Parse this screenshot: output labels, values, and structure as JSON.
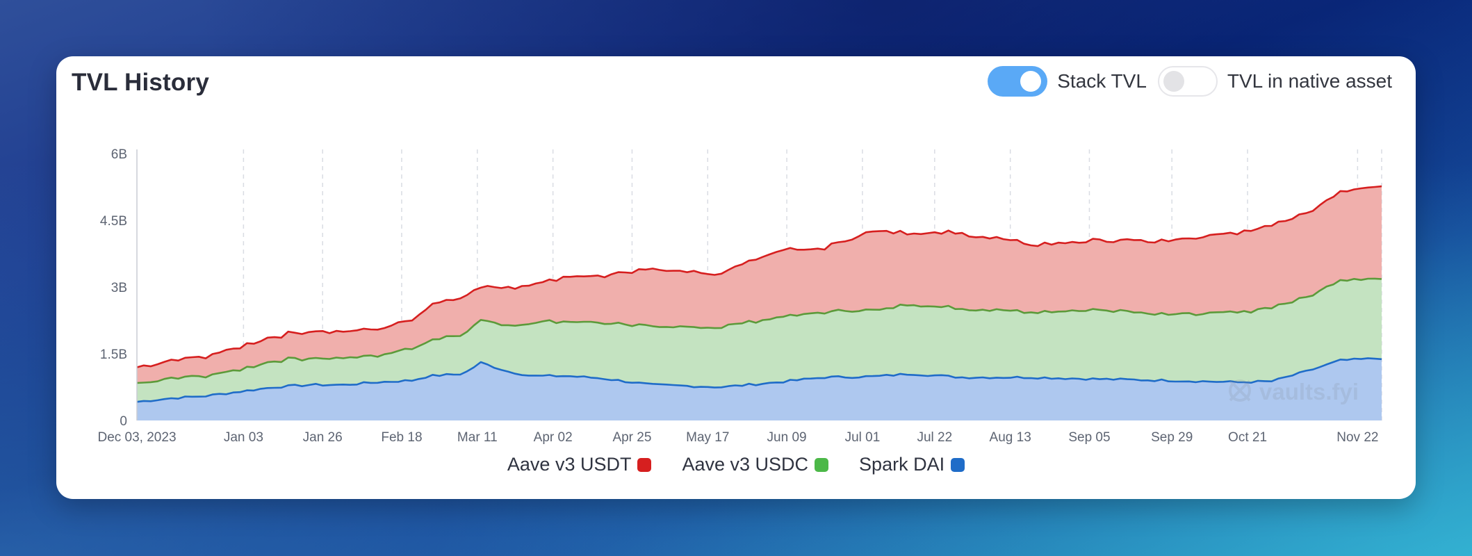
{
  "header": {
    "title": "TVL History",
    "toggles": [
      {
        "label": "Stack TVL",
        "on": true
      },
      {
        "label": "TVL in native asset",
        "on": false
      }
    ]
  },
  "watermark": "vaults.fyi",
  "colors": {
    "usdt_line": "#d61f1f",
    "usdt_fill": "#f0afac",
    "usdc_line": "#5c9a3a",
    "usdc_fill": "#c4e3c1",
    "dai_line": "#1f6cc8",
    "dai_fill": "#aec8ef",
    "toggle_on": "#5aa9f6"
  },
  "chart_data": {
    "type": "area",
    "stacked": true,
    "title": "TVL History",
    "ylim": [
      0,
      6000000000
    ],
    "yticks": [
      {
        "value": 0,
        "label": "0"
      },
      {
        "value": 1500000000,
        "label": "1.5B"
      },
      {
        "value": 3000000000,
        "label": "3B"
      },
      {
        "value": 4500000000,
        "label": "4.5B"
      },
      {
        "value": 6000000000,
        "label": "6B"
      }
    ],
    "xlim": [
      0,
      362
    ],
    "xticks": [
      {
        "day": 0,
        "label": "Dec 03, 2023"
      },
      {
        "day": 31,
        "label": "Jan 03"
      },
      {
        "day": 54,
        "label": "Jan 26"
      },
      {
        "day": 77,
        "label": "Feb 18"
      },
      {
        "day": 99,
        "label": "Mar 11"
      },
      {
        "day": 121,
        "label": "Apr 02"
      },
      {
        "day": 144,
        "label": "Apr 25"
      },
      {
        "day": 166,
        "label": "May 17"
      },
      {
        "day": 189,
        "label": "Jun 09"
      },
      {
        "day": 211,
        "label": "Jul 01"
      },
      {
        "day": 232,
        "label": "Jul 22"
      },
      {
        "day": 254,
        "label": "Aug 13"
      },
      {
        "day": 277,
        "label": "Sep 05"
      },
      {
        "day": 301,
        "label": "Sep 29"
      },
      {
        "day": 323,
        "label": "Oct 21"
      },
      {
        "day": 355,
        "label": "Nov 22"
      }
    ],
    "legend_position": "bottom-center",
    "series": [
      {
        "name": "Spark DAI",
        "color": "#1f6cc8",
        "days": [
          0,
          10,
          20,
          30,
          40,
          50,
          60,
          70,
          80,
          85,
          95,
          100,
          108,
          115,
          125,
          135,
          150,
          170,
          185,
          200,
          215,
          225,
          240,
          260,
          280,
          300,
          320,
          330,
          340,
          350,
          362
        ],
        "values": [
          0.42,
          0.5,
          0.55,
          0.65,
          0.75,
          0.8,
          0.8,
          0.86,
          0.9,
          1.0,
          1.05,
          1.3,
          1.1,
          1.0,
          1.0,
          0.95,
          0.8,
          0.75,
          0.85,
          0.97,
          0.99,
          1.05,
          0.97,
          0.97,
          0.93,
          0.9,
          0.86,
          0.88,
          1.1,
          1.35,
          1.4
        ]
      },
      {
        "name": "Aave v3 USDC",
        "color": "#5c9a3a",
        "days": [
          0,
          10,
          20,
          30,
          40,
          50,
          60,
          70,
          80,
          85,
          95,
          100,
          108,
          115,
          125,
          135,
          150,
          170,
          185,
          200,
          215,
          225,
          240,
          260,
          280,
          300,
          320,
          330,
          340,
          350,
          362
        ],
        "values": [
          0.4,
          0.45,
          0.45,
          0.5,
          0.6,
          0.6,
          0.6,
          0.6,
          0.73,
          0.8,
          0.9,
          0.95,
          1.05,
          1.2,
          1.23,
          1.25,
          1.3,
          1.35,
          1.45,
          1.47,
          1.5,
          1.55,
          1.55,
          1.48,
          1.56,
          1.5,
          1.56,
          1.66,
          1.65,
          1.8,
          1.8
        ]
      },
      {
        "name": "Aave v3 USDT",
        "color": "#d61f1f",
        "days": [
          0,
          10,
          20,
          30,
          40,
          50,
          60,
          70,
          80,
          85,
          95,
          100,
          108,
          115,
          125,
          135,
          150,
          170,
          185,
          200,
          215,
          225,
          240,
          260,
          280,
          300,
          320,
          330,
          340,
          350,
          362
        ],
        "values": [
          0.35,
          0.42,
          0.45,
          0.5,
          0.55,
          0.6,
          0.6,
          0.6,
          0.65,
          0.8,
          0.85,
          0.75,
          0.85,
          0.85,
          1.0,
          1.05,
          1.3,
          1.2,
          1.5,
          1.45,
          1.8,
          1.6,
          1.7,
          1.52,
          1.56,
          1.65,
          1.78,
          1.86,
          1.9,
          2.0,
          2.1
        ]
      }
    ],
    "value_unit": "B"
  }
}
